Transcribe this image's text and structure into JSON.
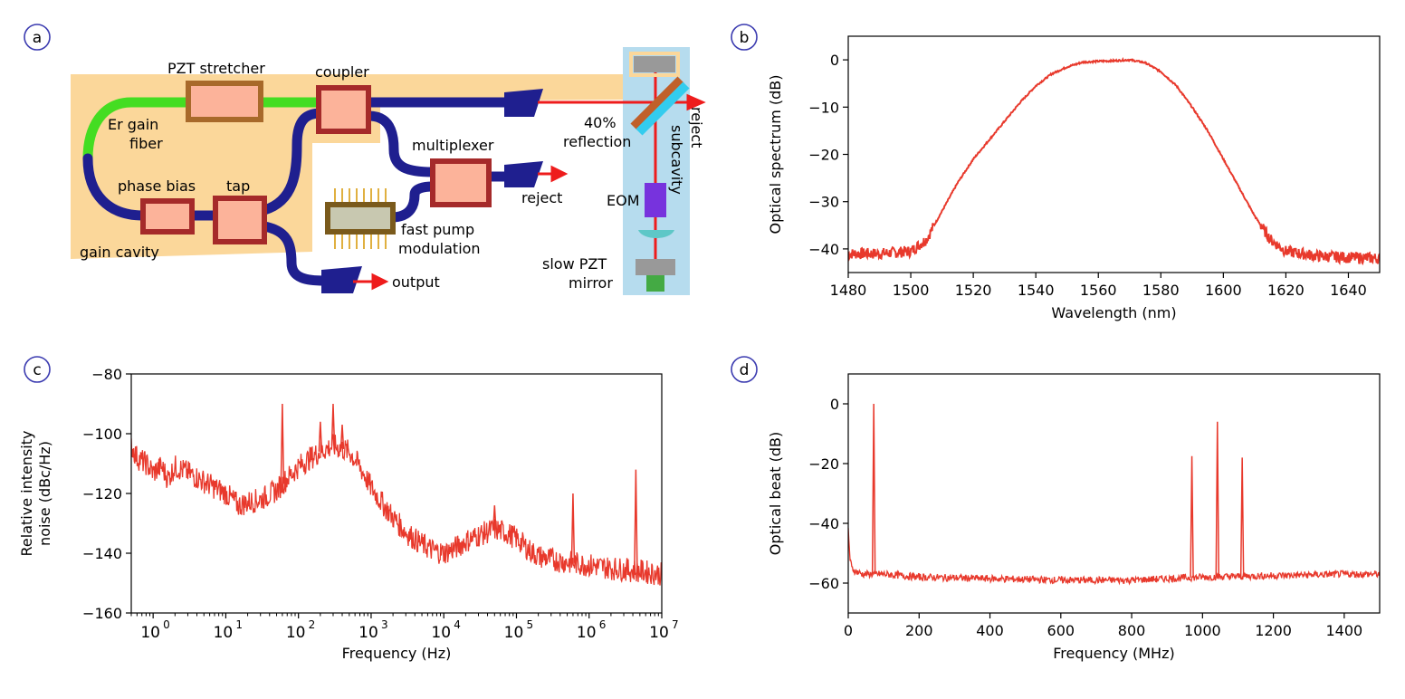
{
  "colors": {
    "trace": "#e8392c",
    "fiber": "#1f1f8f",
    "gain_fiber": "#44dd22",
    "component_fill": "#fcb39a",
    "component_border": "#a52a2a",
    "stretcher_border": "#a8692a",
    "cavity_bg": "#fbd79a",
    "subcavity_bg": "#b6dcee",
    "panel_label_ring": "#3b3bb0",
    "beam": "#ee1c1c"
  },
  "panels": {
    "a": {
      "label": "a",
      "labels": {
        "pzt_stretcher": "PZT stretcher",
        "coupler": "coupler",
        "er_gain_1": "Er gain",
        "er_gain_2": "fiber",
        "phase_bias": "phase bias",
        "tap": "tap",
        "gain_cavity": "gain cavity",
        "multiplexer": "multiplexer",
        "reject_mux": "reject",
        "fast_pump_1": "fast pump",
        "fast_pump_2": "modulation",
        "output": "output",
        "reflection_1": "40%",
        "reflection_2": "reflection",
        "eom": "EOM",
        "slow_pzt_1": "slow PZT",
        "slow_pzt_2": "mirror",
        "reject_side": "reject",
        "subcavity": "subcavity"
      },
      "icons": [
        "collimator-icon",
        "chip-icon",
        "mirror-icon",
        "lens-icon",
        "pzt-mirror-icon"
      ]
    },
    "b": {
      "label": "b"
    },
    "c": {
      "label": "c"
    },
    "d": {
      "label": "d"
    }
  },
  "chart_data": [
    {
      "id": "b",
      "type": "line",
      "xlabel": "Wavelength (nm)",
      "ylabel": "Optical spectrum (dB)",
      "xlim": [
        1480,
        1650
      ],
      "ylim": [
        -45,
        5
      ],
      "xticks": [
        1480,
        1500,
        1520,
        1540,
        1560,
        1580,
        1600,
        1620,
        1640
      ],
      "yticks": [
        0,
        -10,
        -20,
        -30,
        -40
      ],
      "x": [
        1480,
        1490,
        1500,
        1505,
        1510,
        1515,
        1520,
        1525,
        1530,
        1535,
        1540,
        1545,
        1550,
        1555,
        1560,
        1565,
        1570,
        1575,
        1580,
        1585,
        1590,
        1595,
        1600,
        1605,
        1610,
        1615,
        1620,
        1630,
        1640,
        1650
      ],
      "y": [
        -41,
        -41,
        -40.5,
        -38,
        -32,
        -26,
        -21,
        -17,
        -13,
        -9,
        -5.5,
        -3,
        -1.5,
        -0.5,
        -0.3,
        -0.2,
        0,
        -0.6,
        -2.5,
        -5.5,
        -10,
        -15,
        -21,
        -27,
        -33,
        -38,
        -40.5,
        -41.5,
        -41.8,
        -42
      ]
    },
    {
      "id": "c",
      "type": "line",
      "xlabel": "Frequency (Hz)",
      "ylabel": "Relative intensity noise (dBc/Hz)",
      "ylabel_lines": [
        "Relative intensity",
        "noise (dBc/Hz)"
      ],
      "xscale": "log",
      "xlim": [
        0.5,
        10000000
      ],
      "ylim": [
        -160,
        -80
      ],
      "xticks": [
        1,
        10,
        100,
        1000,
        10000,
        100000,
        1000000,
        10000000
      ],
      "xtick_labels": [
        [
          "10",
          "0"
        ],
        [
          "10",
          "1"
        ],
        [
          "10",
          "2"
        ],
        [
          "10",
          "3"
        ],
        [
          "10",
          "4"
        ],
        [
          "10",
          "5"
        ],
        [
          "10",
          "6"
        ],
        [
          "10",
          "7"
        ]
      ],
      "yticks": [
        -80,
        -100,
        -120,
        -140,
        -160
      ],
      "x": [
        0.5,
        0.6,
        0.8,
        1,
        1.3,
        1.6,
        2,
        3,
        5,
        7,
        10,
        15,
        20,
        30,
        50,
        70,
        100,
        150,
        200,
        300,
        500,
        700,
        1000,
        1500,
        2000,
        3000,
        5000,
        7000,
        10000,
        15000,
        20000,
        30000,
        50000,
        70000,
        100000,
        150000,
        200000,
        300000,
        500000,
        1000000,
        2000000,
        5000000,
        10000000
      ],
      "y": [
        -104,
        -108,
        -110,
        -113,
        -111,
        -115,
        -111,
        -113,
        -116,
        -118,
        -120,
        -124,
        -123,
        -122,
        -119,
        -115,
        -111,
        -108,
        -106,
        -104,
        -106,
        -111,
        -118,
        -124,
        -128,
        -133,
        -137,
        -139,
        -140,
        -138,
        -136,
        -134,
        -132,
        -133,
        -135,
        -139,
        -141,
        -142,
        -143,
        -144,
        -145,
        -146,
        -147
      ],
      "spikes": [
        {
          "x": 60,
          "y": -90
        },
        {
          "x": 200,
          "y": -96
        },
        {
          "x": 300,
          "y": -90
        },
        {
          "x": 400,
          "y": -97
        },
        {
          "x": 50000,
          "y": -124
        },
        {
          "x": 600000,
          "y": -120
        },
        {
          "x": 4400000,
          "y": -112
        }
      ]
    },
    {
      "id": "d",
      "type": "line",
      "xlabel": "Frequency (MHz)",
      "ylabel": "Optical beat (dB)",
      "xlim": [
        0,
        1500
      ],
      "ylim": [
        -70,
        10
      ],
      "xticks": [
        0,
        200,
        400,
        600,
        800,
        1000,
        1200,
        1400
      ],
      "yticks": [
        0,
        -20,
        -40,
        -60
      ],
      "x": [
        0,
        5,
        10,
        20,
        40,
        60,
        80,
        100,
        200,
        400,
        600,
        800,
        1000,
        1200,
        1400,
        1500
      ],
      "y": [
        -42,
        -52,
        -55,
        -56,
        -57,
        -57,
        -57,
        -57,
        -58,
        -58.5,
        -59,
        -59,
        -58,
        -57.5,
        -57,
        -57
      ],
      "spikes": [
        {
          "x": 72,
          "y": 0
        },
        {
          "x": 970,
          "y": -17.5
        },
        {
          "x": 1042,
          "y": -6
        },
        {
          "x": 1112,
          "y": -18
        }
      ]
    }
  ]
}
